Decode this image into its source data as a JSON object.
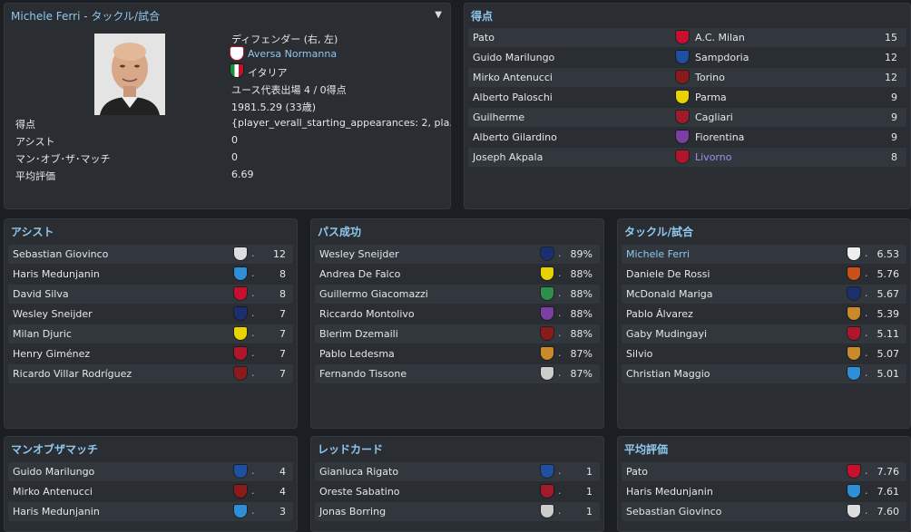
{
  "profile": {
    "title": "Michele Ferri - タックル/試合",
    "position": "ディフェンダー (右, 左)",
    "club": "Aversa Normanna",
    "nation": "イタリア",
    "youth_caps": "ユース代表出場 4 / 0得点",
    "dob": "1981.5.29 (33歳)",
    "stats": [
      {
        "label": "得点",
        "value": "{player_verall_starting_appearances: 2, pla.."
      },
      {
        "label": "アシスト",
        "value": "0"
      },
      {
        "label": "マン･オブ･ザ･マッチ",
        "value": "0"
      },
      {
        "label": "平均評価",
        "value": "6.69"
      }
    ]
  },
  "scorers": {
    "title": "得点",
    "rows": [
      {
        "name": "Pato",
        "club": "A.C. Milan",
        "value": "15",
        "color": "#c8102e",
        "link": false
      },
      {
        "name": "Guido Marilungo",
        "club": "Sampdoria",
        "value": "12",
        "color": "#1f4fa0",
        "link": false
      },
      {
        "name": "Mirko Antenucci",
        "club": "Torino",
        "value": "12",
        "color": "#8b1a1a",
        "link": false
      },
      {
        "name": "Alberto Paloschi",
        "club": "Parma",
        "value": "9",
        "color": "#e8d200",
        "link": false
      },
      {
        "name": "Guilherme",
        "club": "Cagliari",
        "value": "9",
        "color": "#a01c2c",
        "link": false
      },
      {
        "name": "Alberto Gilardino",
        "club": "Fiorentina",
        "value": "9",
        "color": "#7a3fa0",
        "link": false
      },
      {
        "name": "Joseph Akpala",
        "club": "Livorno",
        "value": "8",
        "color": "#b0162b",
        "link": true
      }
    ]
  },
  "assists": {
    "title": "アシスト",
    "rows": [
      {
        "name": "Sebastian Giovinco",
        "value": "12",
        "color": "#dddddd"
      },
      {
        "name": "Haris Medunjanin",
        "value": "8",
        "color": "#2e8fd6"
      },
      {
        "name": "David Silva",
        "value": "8",
        "color": "#c8102e"
      },
      {
        "name": "Wesley Sneijder",
        "value": "7",
        "color": "#1a2f6e"
      },
      {
        "name": "Milan Djuric",
        "value": "7",
        "color": "#e8d200"
      },
      {
        "name": "Henry Giménez",
        "value": "7",
        "color": "#b0162b"
      },
      {
        "name": "Ricardo Villar Rodríguez",
        "value": "7",
        "color": "#8b1a1a"
      }
    ]
  },
  "passes": {
    "title": "パス成功",
    "rows": [
      {
        "name": "Wesley Sneijder",
        "value": "89%",
        "color": "#1a2f6e"
      },
      {
        "name": "Andrea De Falco",
        "value": "88%",
        "color": "#e8d200"
      },
      {
        "name": "Guillermo Giacomazzi",
        "value": "88%",
        "color": "#2e8f4a"
      },
      {
        "name": "Riccardo Montolivo",
        "value": "88%",
        "color": "#7a3fa0"
      },
      {
        "name": "Blerim Dzemaili",
        "value": "88%",
        "color": "#8b1a1a"
      },
      {
        "name": "Pablo Ledesma",
        "value": "87%",
        "color": "#c98a2a"
      },
      {
        "name": "Fernando Tissone",
        "value": "87%",
        "color": "#cccccc"
      }
    ]
  },
  "tackles": {
    "title": "タックル/試合",
    "rows": [
      {
        "name": "Michele Ferri",
        "value": "6.53",
        "color": "#eeeeee",
        "link": true
      },
      {
        "name": "Daniele De Rossi",
        "value": "5.76",
        "color": "#c9501a",
        "link": false
      },
      {
        "name": "McDonald Mariga",
        "value": "5.67",
        "color": "#1a2f6e",
        "link": false
      },
      {
        "name": "Pablo Álvarez",
        "value": "5.39",
        "color": "#c98a2a",
        "link": false
      },
      {
        "name": "Gaby Mudingayi",
        "value": "5.11",
        "color": "#b0162b",
        "link": false
      },
      {
        "name": "Silvio",
        "value": "5.07",
        "color": "#c98a2a",
        "link": false
      },
      {
        "name": "Christian Maggio",
        "value": "5.01",
        "color": "#2e8fd6",
        "link": false
      }
    ]
  },
  "motm": {
    "title": "マンオブザマッチ",
    "rows": [
      {
        "name": "Guido Marilungo",
        "value": "4",
        "color": "#1f4fa0"
      },
      {
        "name": "Mirko Antenucci",
        "value": "4",
        "color": "#8b1a1a"
      },
      {
        "name": "Haris Medunjanin",
        "value": "3",
        "color": "#2e8fd6"
      }
    ]
  },
  "redcards": {
    "title": "レッドカード",
    "rows": [
      {
        "name": "Gianluca Rigato",
        "value": "1",
        "color": "#1f4fa0"
      },
      {
        "name": "Oreste Sabatino",
        "value": "1",
        "color": "#a01c2c"
      },
      {
        "name": "Jonas Borring",
        "value": "1",
        "color": "#cccccc"
      }
    ]
  },
  "ratings": {
    "title": "平均評価",
    "rows": [
      {
        "name": "Pato",
        "value": "7.76",
        "color": "#c8102e"
      },
      {
        "name": "Haris Medunjanin",
        "value": "7.61",
        "color": "#2e8fd6"
      },
      {
        "name": "Sebastian Giovinco",
        "value": "7.60",
        "color": "#dddddd"
      }
    ]
  }
}
